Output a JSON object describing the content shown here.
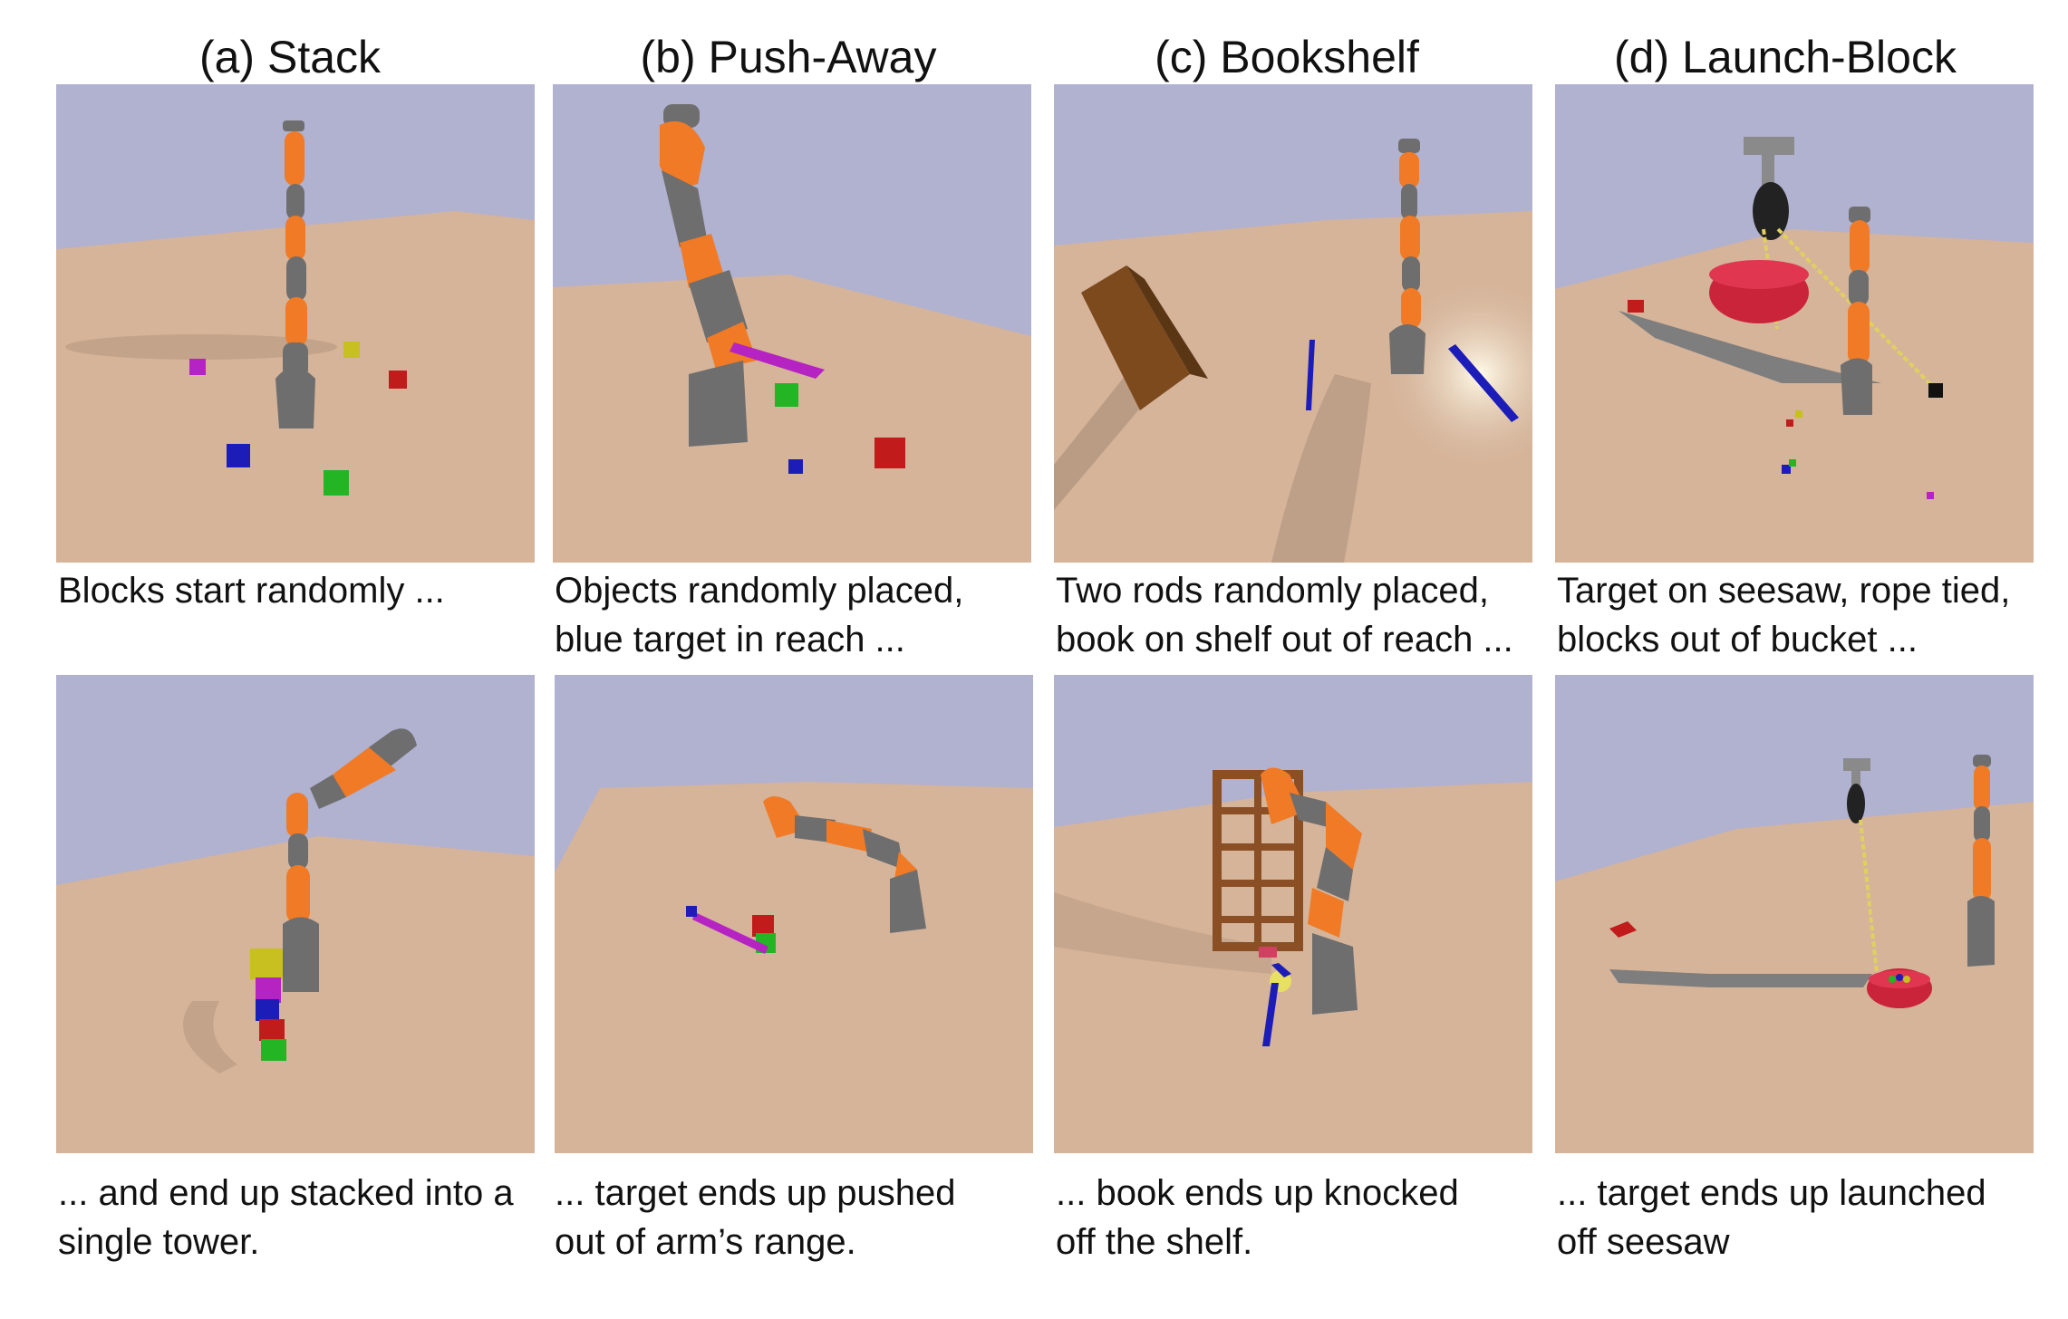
{
  "columns": [
    {
      "title": "(a) Stack",
      "top_caption": [
        "Blocks start randomly ..."
      ],
      "bottom_caption": [
        "... and end up stacked into a",
        "single tower."
      ]
    },
    {
      "title": "(b) Push-Away",
      "top_caption": [
        "Objects randomly placed,",
        "blue target in reach ..."
      ],
      "bottom_caption": [
        "... target ends up pushed",
        "out of arm’s range."
      ]
    },
    {
      "title": "(c) Bookshelf",
      "top_caption": [
        "Two rods randomly placed,",
        "book on shelf out of reach ..."
      ],
      "bottom_caption": [
        "... book ends up knocked",
        "off the shelf."
      ]
    },
    {
      "title": "(d) Launch-Block",
      "top_caption": [
        "Target on seesaw, rope tied,",
        "blocks out of bucket ..."
      ],
      "bottom_caption": [
        "... target ends up launched",
        "off seesaw"
      ]
    }
  ],
  "colors": {
    "sky": "#b1b1d0",
    "floor": "#d5b49a",
    "arm_orange": "#f07a25",
    "arm_gray": "#6e6e6e"
  }
}
